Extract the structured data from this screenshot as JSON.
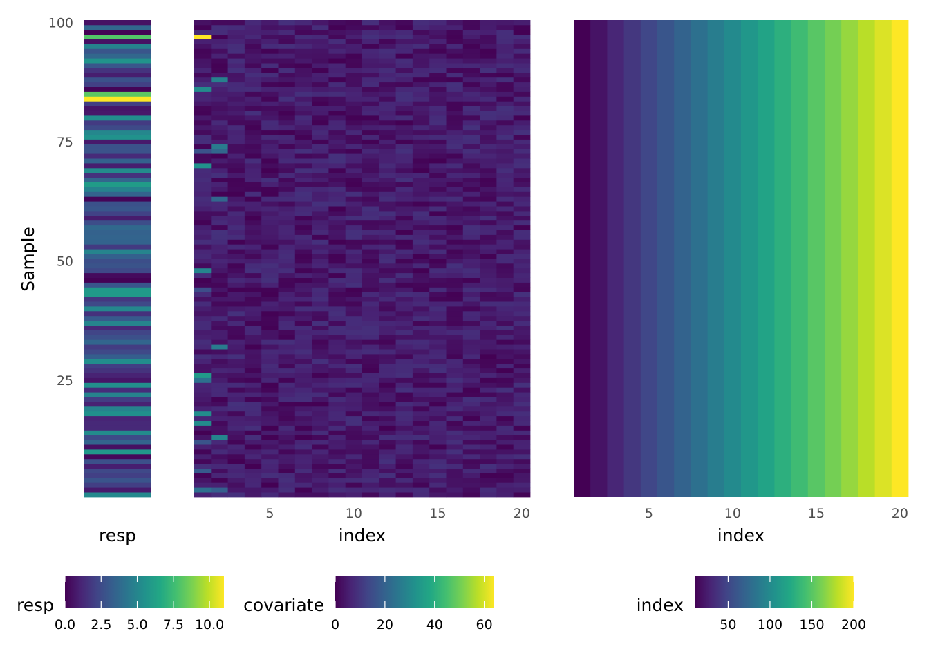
{
  "chart_data": [
    {
      "type": "heatmap",
      "panel": "resp",
      "ylabel": "Sample",
      "xlabel": "resp",
      "y_range": [
        1,
        100
      ],
      "y_ticks": [
        "25",
        "50",
        "75",
        "100"
      ],
      "color_scale": "viridis",
      "color_range": [
        0,
        11
      ],
      "legend": {
        "title": "resp",
        "ticks": [
          "0.0",
          "2.5",
          "5.0",
          "7.5",
          "10.0"
        ],
        "tick_values": [
          0,
          2.5,
          5,
          7.5,
          10
        ]
      }
    },
    {
      "type": "heatmap",
      "panel": "covariate",
      "xlabel": "index",
      "x_range": [
        1,
        20
      ],
      "x_ticks": [
        "5",
        "10",
        "15",
        "20"
      ],
      "y_range": [
        1,
        100
      ],
      "color_scale": "viridis",
      "color_range": [
        0,
        64
      ],
      "legend": {
        "title": "covariate",
        "ticks": [
          "0",
          "20",
          "40",
          "60"
        ],
        "tick_values": [
          0,
          20,
          40,
          60
        ]
      }
    },
    {
      "type": "heatmap",
      "panel": "index",
      "xlabel": "index",
      "x_range": [
        1,
        20
      ],
      "x_ticks": [
        "5",
        "10",
        "15",
        "20"
      ],
      "y_range": [
        1,
        100
      ],
      "color_scale": "viridis",
      "color_range": [
        10,
        200
      ],
      "column_values": [
        10,
        20,
        30,
        40,
        50,
        60,
        70,
        80,
        90,
        100,
        110,
        120,
        130,
        140,
        150,
        160,
        170,
        180,
        190,
        200
      ],
      "legend": {
        "title": "index",
        "ticks": [
          "50",
          "100",
          "150",
          "200"
        ],
        "tick_values": [
          50,
          100,
          150,
          200
        ]
      }
    }
  ]
}
